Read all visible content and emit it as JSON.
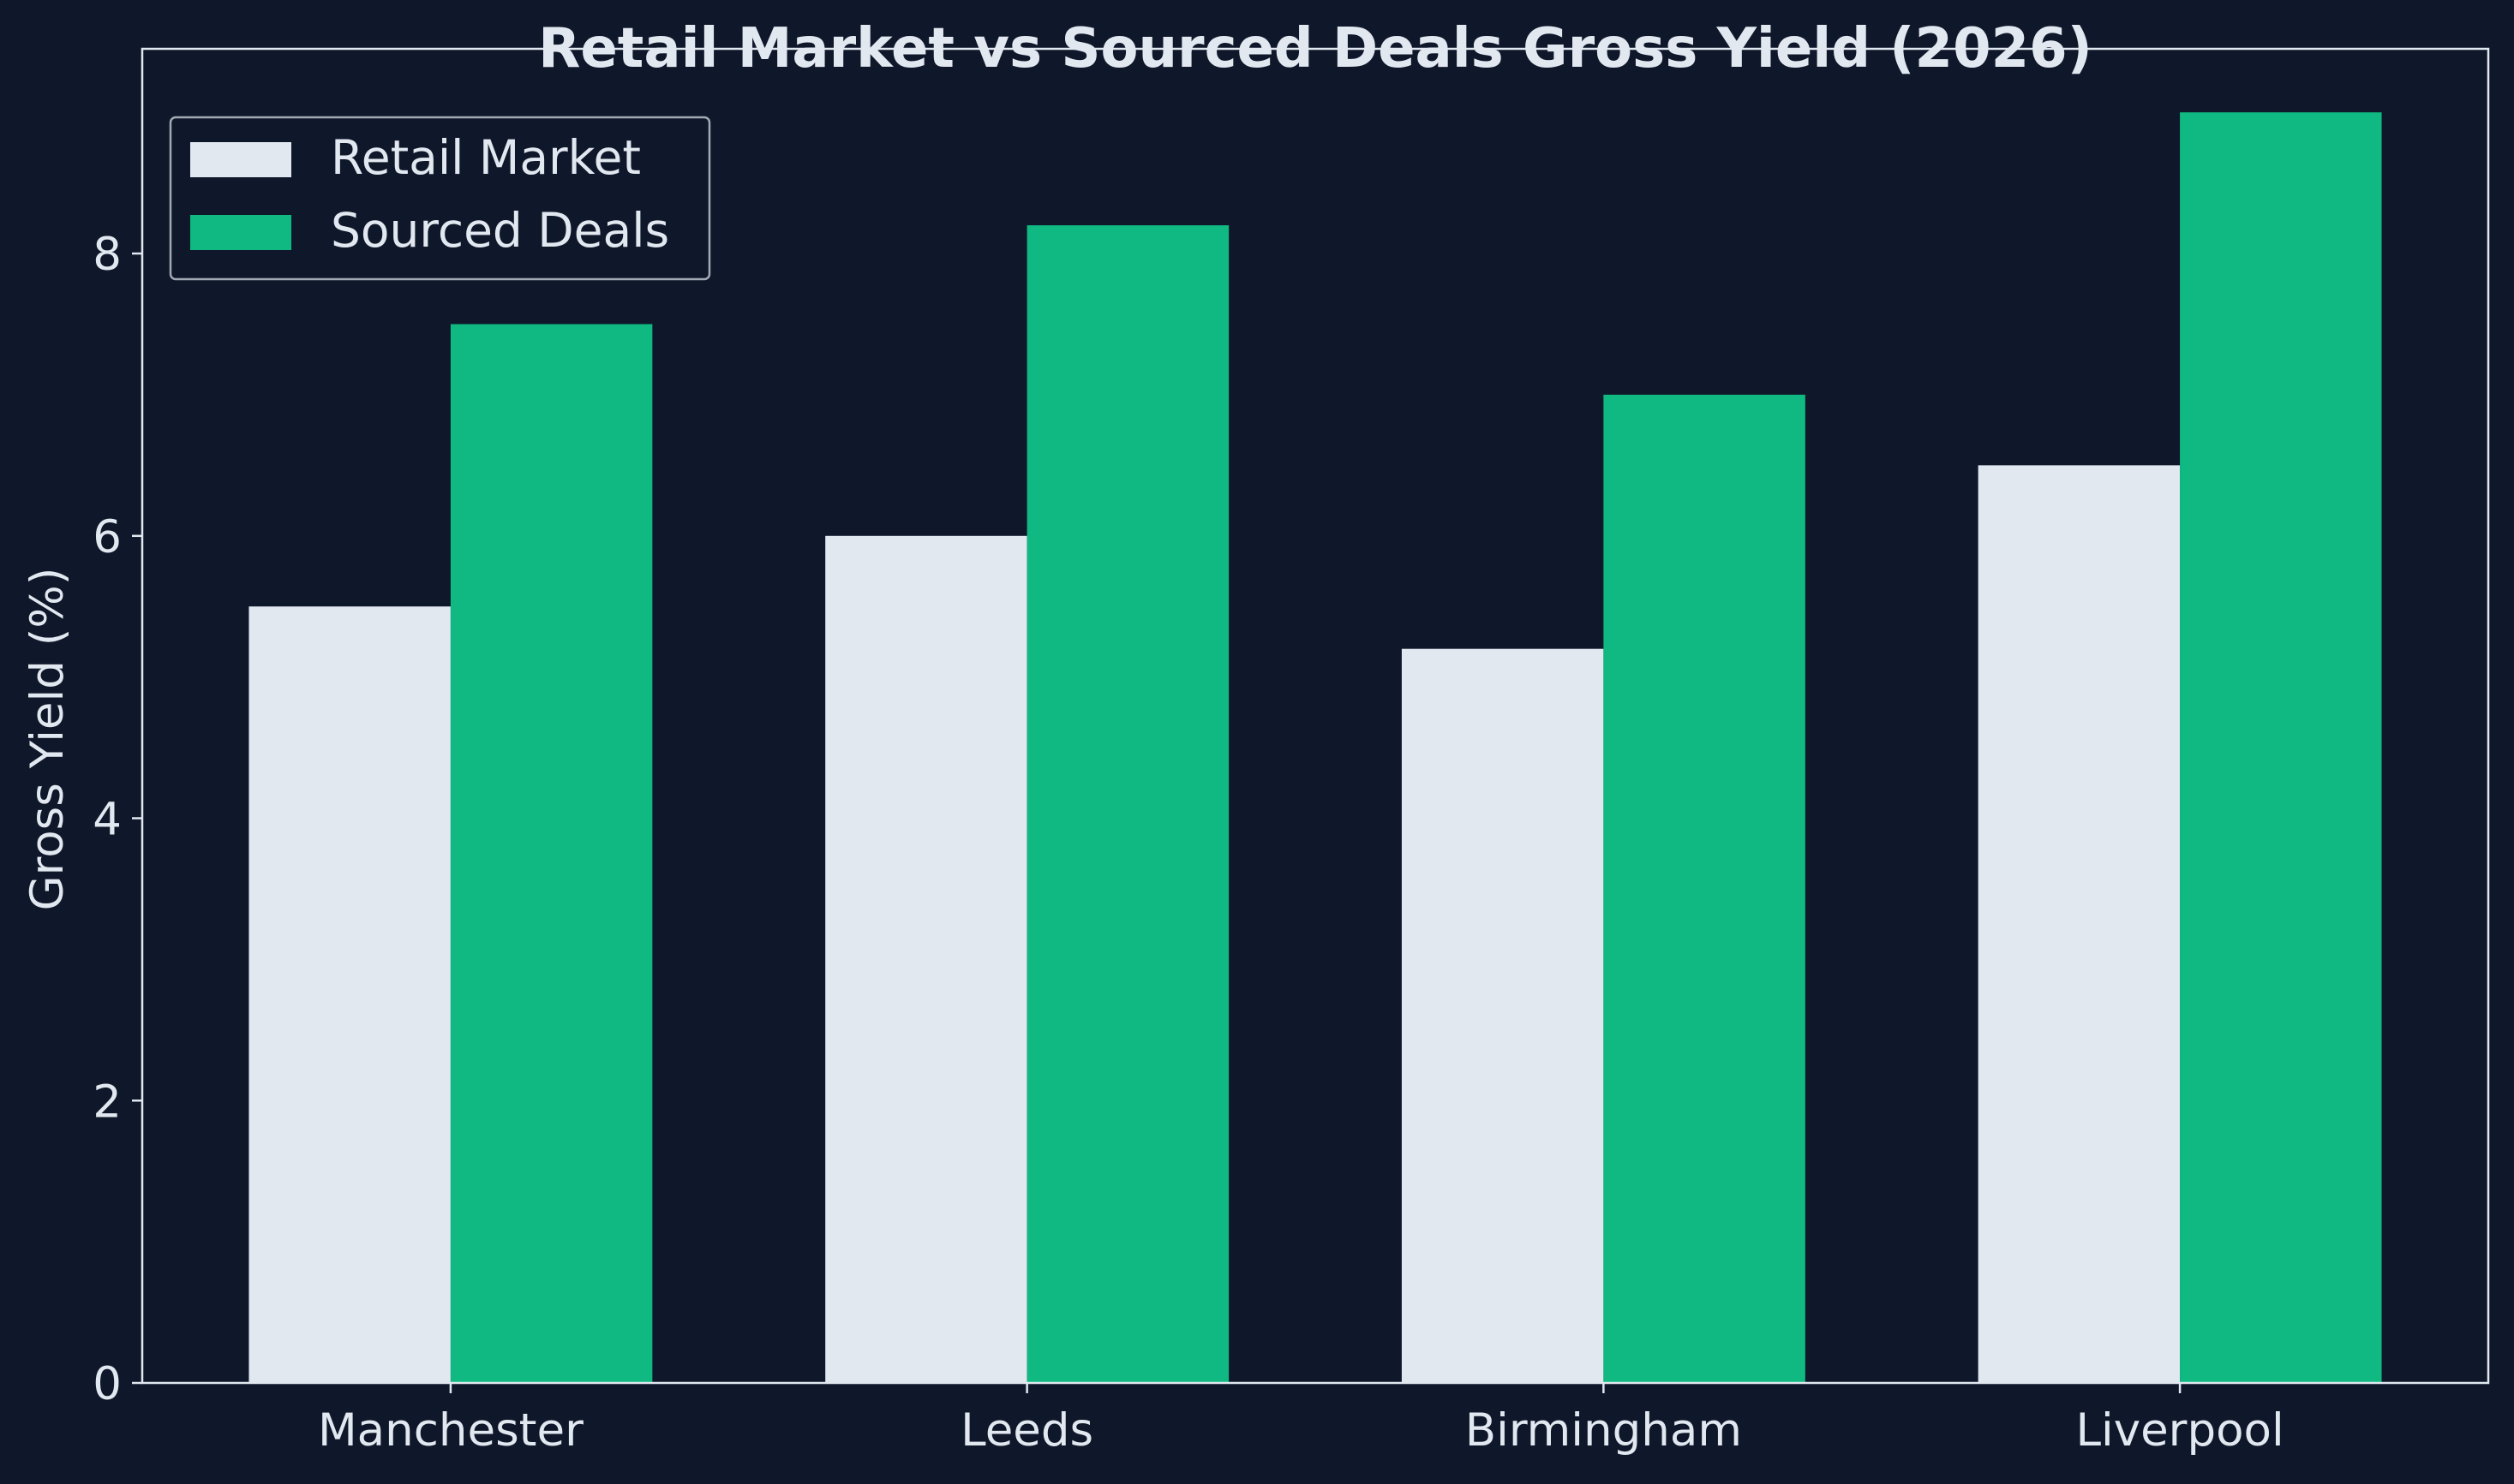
{
  "chart_data": {
    "type": "bar",
    "title": "Retail Market vs Sourced Deals Gross Yield (2026)",
    "xlabel": "",
    "ylabel": "Gross Yield (%)",
    "categories": [
      "Manchester",
      "Leeds",
      "Birmingham",
      "Liverpool"
    ],
    "series": [
      {
        "name": "Retail Market",
        "values": [
          5.5,
          6.0,
          5.2,
          6.5
        ],
        "color": "#e2e8f0"
      },
      {
        "name": "Sourced Deals",
        "values": [
          7.5,
          8.2,
          7.0,
          9.0
        ],
        "color": "#10b981"
      }
    ],
    "ylim": [
      0,
      9.45
    ],
    "yticks": [
      0,
      2,
      4,
      6,
      8
    ],
    "ytick_labels": [
      "0",
      "2",
      "4",
      "6",
      "8"
    ],
    "grid": false,
    "legend": "top-left",
    "colors": {
      "background": "#0f172a",
      "text": "#e2e8f0",
      "axis": "#e2e8f0"
    }
  }
}
